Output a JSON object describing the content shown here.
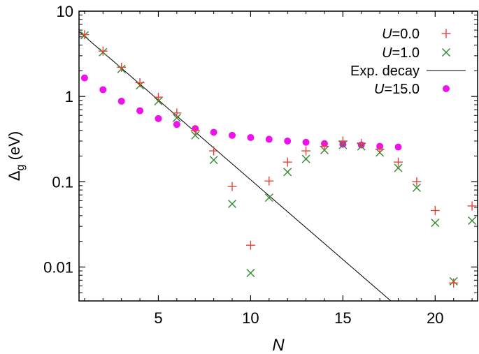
{
  "chart_data": {
    "type": "scatter",
    "title": "",
    "xlabel": "N",
    "ylabel": "Δg (eV)",
    "ylabel_main": "Δ",
    "ylabel_sub": "g",
    "ylabel_rest": " (eV)",
    "xlim": [
      0.7,
      22.3
    ],
    "ylim": [
      0.004,
      10
    ],
    "yscale": "log",
    "x_ticks": [
      5,
      10,
      15,
      20
    ],
    "x_tick_labels": [
      "5",
      "10",
      "15",
      "20"
    ],
    "y_ticks": [
      0.01,
      0.1,
      1,
      10
    ],
    "y_tick_labels": [
      "0.01",
      "0.1",
      "1",
      "10"
    ],
    "legend_position": "top-right",
    "series": [
      {
        "name": "U=0.0",
        "label_italic": "U",
        "label_rest": "=0.0",
        "marker": "plus",
        "color": "#e8423a",
        "x": [
          1,
          2,
          3,
          4,
          5,
          6,
          7,
          8,
          9,
          10,
          11,
          12,
          13,
          14,
          15,
          16,
          17,
          18,
          19,
          20,
          21,
          22
        ],
        "y": [
          5.3,
          3.4,
          2.2,
          1.45,
          0.98,
          0.64,
          0.4,
          0.23,
          0.088,
          0.018,
          0.102,
          0.17,
          0.23,
          0.26,
          0.3,
          0.28,
          0.24,
          0.17,
          0.1,
          0.046,
          0.0065,
          0.052
        ]
      },
      {
        "name": "U=1.0",
        "label_italic": "U",
        "label_rest": "=1.0",
        "marker": "cross",
        "color": "#2e8b2e",
        "x": [
          1,
          2,
          3,
          4,
          5,
          6,
          7,
          8,
          9,
          10,
          11,
          12,
          13,
          14,
          15,
          16,
          17,
          18,
          19,
          20,
          21,
          22
        ],
        "y": [
          5.2,
          3.3,
          2.1,
          1.35,
          0.88,
          0.56,
          0.35,
          0.18,
          0.055,
          0.0085,
          0.065,
          0.13,
          0.185,
          0.235,
          0.27,
          0.26,
          0.22,
          0.145,
          0.085,
          0.033,
          0.0068,
          0.035
        ]
      },
      {
        "name": "Exp. decay",
        "label_text": "Exp. decay",
        "marker": "line",
        "color": "#000000",
        "x": [
          0.7,
          17.6
        ],
        "y": [
          5.77,
          0.004
        ]
      },
      {
        "name": "U=15.0",
        "label_italic": "U",
        "label_rest": "=15.0",
        "marker": "dot",
        "color": "#ee11ee",
        "x": [
          1,
          2,
          3,
          4,
          5,
          6,
          7,
          8,
          9,
          10,
          11,
          12,
          13,
          14,
          15,
          16,
          17,
          18
        ],
        "y": [
          1.65,
          1.2,
          0.88,
          0.68,
          0.55,
          0.47,
          0.42,
          0.38,
          0.35,
          0.33,
          0.315,
          0.3,
          0.29,
          0.28,
          0.275,
          0.27,
          0.26,
          0.255
        ]
      }
    ]
  }
}
